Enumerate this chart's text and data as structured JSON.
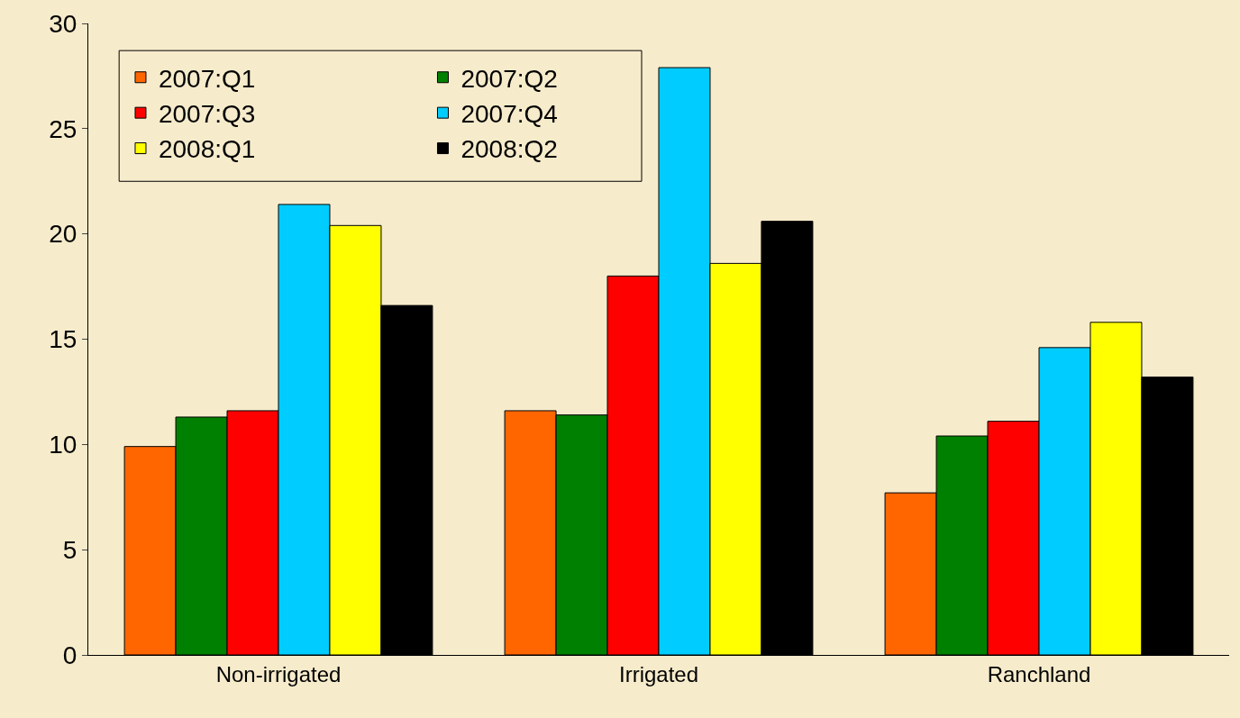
{
  "chart_data": {
    "type": "bar",
    "categories": [
      "Non-irrigated",
      "Irrigated",
      "Ranchland"
    ],
    "series": [
      {
        "name": "2007:Q1",
        "color": "#ff6600",
        "values": [
          9.9,
          11.6,
          7.7
        ]
      },
      {
        "name": "2007:Q2",
        "color": "#008000",
        "values": [
          11.3,
          11.4,
          10.4
        ]
      },
      {
        "name": "2007:Q3",
        "color": "#ff0000",
        "values": [
          11.6,
          18.0,
          11.1
        ]
      },
      {
        "name": "2007:Q4",
        "color": "#00ccff",
        "values": [
          21.4,
          27.9,
          14.6
        ]
      },
      {
        "name": "2008:Q1",
        "color": "#ffff00",
        "values": [
          20.4,
          18.6,
          15.8
        ]
      },
      {
        "name": "2008:Q2",
        "color": "#000000",
        "values": [
          16.6,
          20.6,
          13.2
        ]
      }
    ],
    "ylim": [
      0,
      30
    ],
    "yticks": [
      0,
      5,
      10,
      15,
      20,
      25,
      30
    ],
    "grid": false,
    "legend": "top left"
  }
}
